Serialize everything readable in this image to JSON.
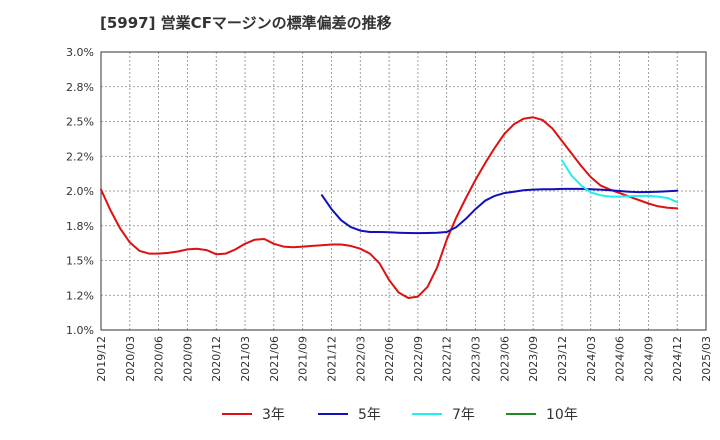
{
  "chart_data": {
    "type": "line",
    "title": "[5997]  営業CFマージンの標準偏差の推移",
    "xlabel": "",
    "ylabel": "",
    "ylim": [
      1.0,
      3.0
    ],
    "y_ticks": [
      1.0,
      1.25,
      1.5,
      1.75,
      2.0,
      2.25,
      2.5,
      2.75,
      3.0
    ],
    "y_tick_labels": [
      "1.0%",
      "1.2%",
      "1.5%",
      "1.8%",
      "2.0%",
      "2.2%",
      "2.5%",
      "2.8%",
      "3.0%"
    ],
    "x_tick_labels": [
      "2019/12",
      "2020/03",
      "2020/06",
      "2020/09",
      "2020/12",
      "2021/03",
      "2021/06",
      "2021/09",
      "2021/12",
      "2022/03",
      "2022/06",
      "2022/09",
      "2022/12",
      "2023/03",
      "2023/06",
      "2023/09",
      "2023/12",
      "2024/03",
      "2024/06",
      "2024/09",
      "2024/12",
      "2025/03"
    ],
    "grid": true,
    "legend_position": "bottom",
    "series": [
      {
        "name": "3年",
        "color": "#dd1111",
        "points": [
          [
            "2019/12",
            2.01
          ],
          [
            "2020/01",
            1.86
          ],
          [
            "2020/02",
            1.73
          ],
          [
            "2020/03",
            1.63
          ],
          [
            "2020/04",
            1.57
          ],
          [
            "2020/05",
            1.55
          ],
          [
            "2020/06",
            1.55
          ],
          [
            "2020/07",
            1.555
          ],
          [
            "2020/08",
            1.565
          ],
          [
            "2020/09",
            1.58
          ],
          [
            "2020/10",
            1.585
          ],
          [
            "2020/11",
            1.575
          ],
          [
            "2020/12",
            1.545
          ],
          [
            "2021/01",
            1.55
          ],
          [
            "2021/02",
            1.58
          ],
          [
            "2021/03",
            1.62
          ],
          [
            "2021/04",
            1.65
          ],
          [
            "2021/05",
            1.655
          ],
          [
            "2021/06",
            1.62
          ],
          [
            "2021/07",
            1.6
          ],
          [
            "2021/08",
            1.595
          ],
          [
            "2021/09",
            1.6
          ],
          [
            "2021/10",
            1.605
          ],
          [
            "2021/11",
            1.61
          ],
          [
            "2021/12",
            1.615
          ],
          [
            "2022/01",
            1.615
          ],
          [
            "2022/02",
            1.605
          ],
          [
            "2022/03",
            1.585
          ],
          [
            "2022/04",
            1.55
          ],
          [
            "2022/05",
            1.48
          ],
          [
            "2022/06",
            1.36
          ],
          [
            "2022/07",
            1.27
          ],
          [
            "2022/08",
            1.23
          ],
          [
            "2022/09",
            1.24
          ],
          [
            "2022/10",
            1.31
          ],
          [
            "2022/11",
            1.45
          ],
          [
            "2022/12",
            1.65
          ],
          [
            "2023/01",
            1.81
          ],
          [
            "2023/02",
            1.95
          ],
          [
            "2023/03",
            2.08
          ],
          [
            "2023/04",
            2.2
          ],
          [
            "2023/05",
            2.31
          ],
          [
            "2023/06",
            2.41
          ],
          [
            "2023/07",
            2.48
          ],
          [
            "2023/08",
            2.52
          ],
          [
            "2023/09",
            2.53
          ],
          [
            "2023/10",
            2.51
          ],
          [
            "2023/11",
            2.45
          ],
          [
            "2023/12",
            2.36
          ],
          [
            "2024/01",
            2.27
          ],
          [
            "2024/02",
            2.18
          ],
          [
            "2024/03",
            2.1
          ],
          [
            "2024/04",
            2.04
          ],
          [
            "2024/05",
            2.01
          ],
          [
            "2024/06",
            1.985
          ],
          [
            "2024/07",
            1.96
          ],
          [
            "2024/08",
            1.935
          ],
          [
            "2024/09",
            1.91
          ],
          [
            "2024/10",
            1.89
          ],
          [
            "2024/11",
            1.88
          ],
          [
            "2024/12",
            1.875
          ]
        ]
      },
      {
        "name": "5年",
        "color": "#1111bb",
        "points": [
          [
            "2021/11",
            1.97
          ],
          [
            "2021/12",
            1.87
          ],
          [
            "2022/01",
            1.79
          ],
          [
            "2022/02",
            1.74
          ],
          [
            "2022/03",
            1.715
          ],
          [
            "2022/04",
            1.705
          ],
          [
            "2022/05",
            1.705
          ],
          [
            "2022/06",
            1.703
          ],
          [
            "2022/07",
            1.7
          ],
          [
            "2022/08",
            1.698
          ],
          [
            "2022/09",
            1.697
          ],
          [
            "2022/10",
            1.698
          ],
          [
            "2022/11",
            1.7
          ],
          [
            "2022/12",
            1.705
          ],
          [
            "2023/01",
            1.74
          ],
          [
            "2023/02",
            1.8
          ],
          [
            "2023/03",
            1.87
          ],
          [
            "2023/04",
            1.93
          ],
          [
            "2023/05",
            1.965
          ],
          [
            "2023/06",
            1.985
          ],
          [
            "2023/07",
            1.995
          ],
          [
            "2023/08",
            2.005
          ],
          [
            "2023/09",
            2.01
          ],
          [
            "2023/10",
            2.012
          ],
          [
            "2023/11",
            2.013
          ],
          [
            "2023/12",
            2.015
          ],
          [
            "2024/01",
            2.015
          ],
          [
            "2024/02",
            2.015
          ],
          [
            "2024/03",
            2.013
          ],
          [
            "2024/04",
            2.01
          ],
          [
            "2024/05",
            2.005
          ],
          [
            "2024/06",
            2.0
          ],
          [
            "2024/07",
            1.995
          ],
          [
            "2024/08",
            1.992
          ],
          [
            "2024/09",
            1.993
          ],
          [
            "2024/10",
            1.995
          ],
          [
            "2024/11",
            1.998
          ],
          [
            "2024/12",
            2.002
          ]
        ]
      },
      {
        "name": "7年",
        "color": "#22eeee",
        "points": [
          [
            "2023/12",
            2.22
          ],
          [
            "2024/01",
            2.11
          ],
          [
            "2024/02",
            2.04
          ],
          [
            "2024/03",
            1.99
          ],
          [
            "2024/04",
            1.97
          ],
          [
            "2024/05",
            1.96
          ],
          [
            "2024/06",
            1.96
          ],
          [
            "2024/07",
            1.962
          ],
          [
            "2024/08",
            1.965
          ],
          [
            "2024/09",
            1.965
          ],
          [
            "2024/10",
            1.96
          ],
          [
            "2024/11",
            1.95
          ],
          [
            "2024/12",
            1.92
          ]
        ]
      },
      {
        "name": "10年",
        "color": "#228822",
        "points": []
      }
    ]
  }
}
